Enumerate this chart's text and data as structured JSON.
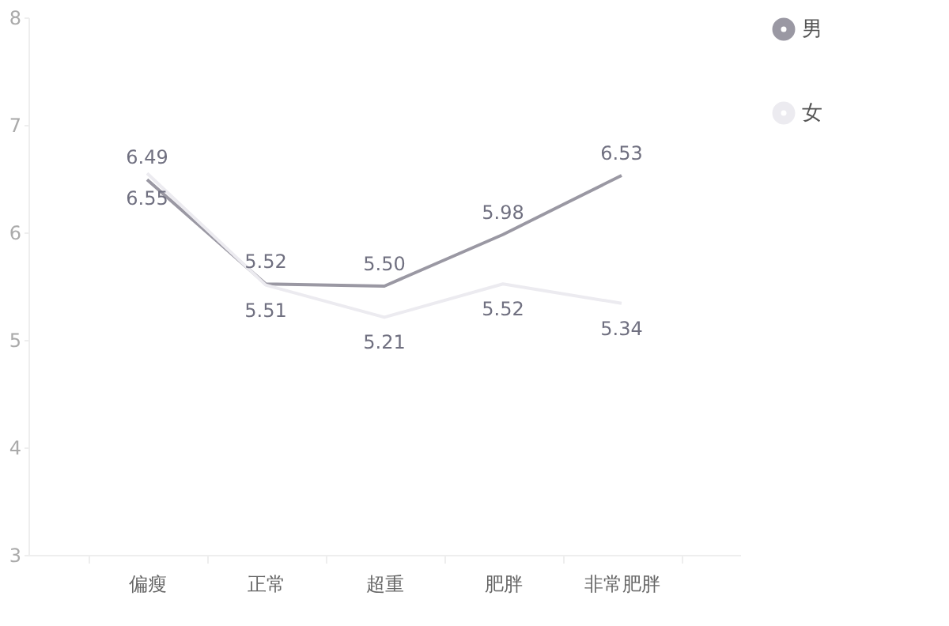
{
  "chart_data": {
    "type": "line",
    "categories": [
      "偏瘦",
      "正常",
      "超重",
      "肥胖",
      "非常肥胖"
    ],
    "series": [
      {
        "name": "男",
        "color": "#9a98a3",
        "values": [
          6.49,
          5.52,
          5.5,
          5.98,
          6.53
        ],
        "value_labels": [
          "6.49",
          "5.52",
          "5.50",
          "5.98",
          "6.53"
        ]
      },
      {
        "name": "女",
        "color": "#ecebf0",
        "values": [
          6.55,
          5.51,
          5.21,
          5.52,
          5.34
        ],
        "value_labels": [
          "6.55",
          "5.51",
          "5.21",
          "5.52",
          "5.34"
        ]
      }
    ],
    "ylim": [
      3,
      8
    ],
    "yticks": [
      3,
      4,
      5,
      6,
      7,
      8
    ],
    "grid": false,
    "legend": "top right",
    "marker": "none",
    "line_style": "solid"
  }
}
